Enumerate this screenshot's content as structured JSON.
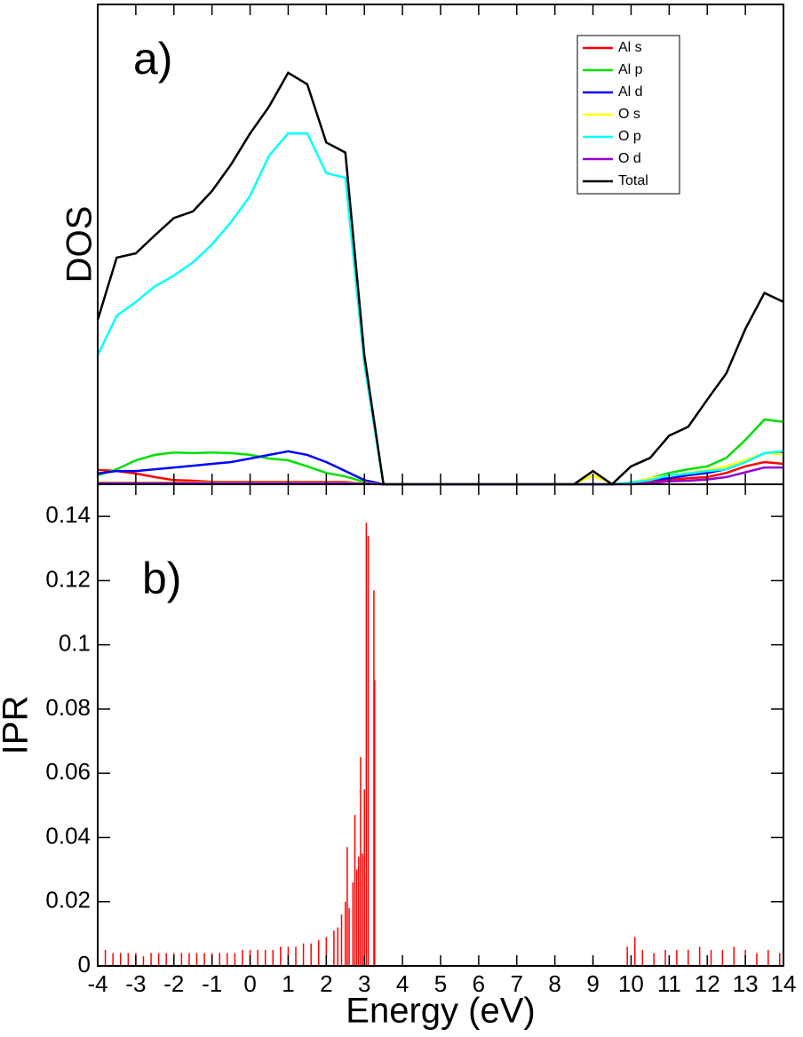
{
  "chart_data": [
    {
      "type": "line",
      "label": "a)",
      "ylabel": "DOS",
      "x": [
        -4,
        -3.5,
        -3,
        -2.5,
        -2,
        -1.5,
        -1,
        -0.5,
        0,
        0.5,
        1,
        1.5,
        2,
        2.5,
        3,
        3.5,
        4,
        4.5,
        5,
        5.5,
        6,
        6.5,
        7,
        7.5,
        8,
        8.5,
        9,
        9.5,
        10,
        10.5,
        11,
        11.5,
        12,
        12.5,
        13,
        13.5,
        14
      ],
      "xlim": [
        -4,
        14
      ],
      "ylim": [
        0,
        8
      ],
      "series": [
        {
          "name": "Al s",
          "color": "#ff0000",
          "values": [
            0.24,
            0.22,
            0.18,
            0.12,
            0.07,
            0.06,
            0.04,
            0.04,
            0.04,
            0.04,
            0.04,
            0.04,
            0.04,
            0.04,
            0.01,
            0,
            0,
            0,
            0,
            0,
            0,
            0,
            0,
            0,
            0,
            0,
            0,
            0,
            0.01,
            0.04,
            0.07,
            0.1,
            0.12,
            0.19,
            0.3,
            0.37,
            0.34
          ]
        },
        {
          "name": "Al p",
          "color": "#00e000",
          "values": [
            0.15,
            0.25,
            0.4,
            0.49,
            0.53,
            0.52,
            0.53,
            0.52,
            0.49,
            0.43,
            0.4,
            0.3,
            0.19,
            0.13,
            0.04,
            0,
            0,
            0,
            0,
            0,
            0,
            0,
            0,
            0,
            0,
            0,
            0,
            0,
            0.03,
            0.1,
            0.19,
            0.25,
            0.3,
            0.44,
            0.74,
            1.08,
            1.04
          ]
        },
        {
          "name": "Al d",
          "color": "#0000ff",
          "values": [
            0.18,
            0.22,
            0.22,
            0.25,
            0.28,
            0.31,
            0.34,
            0.37,
            0.43,
            0.49,
            0.55,
            0.49,
            0.37,
            0.22,
            0.07,
            0,
            0,
            0,
            0,
            0,
            0,
            0,
            0,
            0,
            0,
            0,
            0,
            0,
            0.03,
            0.07,
            0.1,
            0.15,
            0.19,
            0.25,
            0.37,
            0.52,
            0.52
          ]
        },
        {
          "name": "O s",
          "color": "#ffff00",
          "values": [
            0.03,
            0.03,
            0.03,
            0.03,
            0.03,
            0.03,
            0.03,
            0.03,
            0.03,
            0.03,
            0.03,
            0.03,
            0.03,
            0.03,
            0.02,
            0,
            0,
            0,
            0,
            0,
            0,
            0,
            0,
            0,
            0,
            0,
            0.15,
            0,
            0.03,
            0.1,
            0.15,
            0.19,
            0.24,
            0.3,
            0.4,
            0.52,
            0.5
          ]
        },
        {
          "name": "O p",
          "color": "#00ffff",
          "values": [
            2.15,
            2.81,
            3.04,
            3.3,
            3.48,
            3.7,
            4,
            4.37,
            4.81,
            5.48,
            5.85,
            5.85,
            5.19,
            5.11,
            2,
            0,
            0,
            0,
            0,
            0,
            0,
            0,
            0,
            0,
            0,
            0,
            0,
            0,
            0.03,
            0.07,
            0.15,
            0.18,
            0.22,
            0.25,
            0.37,
            0.52,
            0.55
          ]
        },
        {
          "name": "O d",
          "color": "#9400d3",
          "values": [
            0.02,
            0.02,
            0.02,
            0.02,
            0.02,
            0.02,
            0.02,
            0.02,
            0.02,
            0.02,
            0.02,
            0.02,
            0.02,
            0.02,
            0.01,
            0,
            0,
            0,
            0,
            0,
            0,
            0,
            0,
            0,
            0,
            0,
            0,
            0,
            0,
            0.02,
            0.05,
            0.06,
            0.08,
            0.12,
            0.2,
            0.28,
            0.28
          ]
        },
        {
          "name": "Total",
          "color": "#000000",
          "values": [
            2.74,
            3.78,
            3.85,
            4.15,
            4.44,
            4.55,
            4.89,
            5.33,
            5.85,
            6.3,
            6.86,
            6.67,
            5.7,
            5.53,
            2.15,
            0,
            0,
            0,
            0,
            0,
            0,
            0,
            0,
            0,
            0,
            0,
            0.22,
            0,
            0.3,
            0.44,
            0.81,
            0.96,
            1.41,
            1.85,
            2.59,
            3.19,
            3.04
          ]
        }
      ]
    },
    {
      "type": "bar",
      "label": "b)",
      "ylabel": "IPR",
      "xlabel": "Energy (eV)",
      "color": "#ff0000",
      "x": [
        -4,
        -3.8,
        -3.6,
        -3.4,
        -3.2,
        -3,
        -2.8,
        -2.6,
        -2.4,
        -2.2,
        -2,
        -1.8,
        -1.6,
        -1.4,
        -1.2,
        -1,
        -0.8,
        -0.6,
        -0.4,
        -0.2,
        0,
        0.2,
        0.4,
        0.6,
        0.8,
        1,
        1.2,
        1.4,
        1.6,
        1.8,
        2,
        2.2,
        2.3,
        2.4,
        2.5,
        2.55,
        2.6,
        2.7,
        2.75,
        2.8,
        2.85,
        2.9,
        2.95,
        3,
        3.05,
        3.1,
        3.25,
        3.27,
        9,
        9.9,
        10.1,
        10.3,
        10.6,
        10.9,
        11.2,
        11.5,
        11.8,
        12.1,
        12.4,
        12.7,
        13,
        13.3,
        13.6,
        13.9
      ],
      "values": [
        0.008,
        0.005,
        0.004,
        0.004,
        0.004,
        0.004,
        0.003,
        0.004,
        0.004,
        0.004,
        0.004,
        0.004,
        0.004,
        0.004,
        0.004,
        0.004,
        0.004,
        0.004,
        0.004,
        0.005,
        0.005,
        0.005,
        0.005,
        0.005,
        0.006,
        0.006,
        0.006,
        0.007,
        0.007,
        0.008,
        0.009,
        0.011,
        0.012,
        0.016,
        0.02,
        0.037,
        0.018,
        0.026,
        0.047,
        0.03,
        0.034,
        0.065,
        0.035,
        0.055,
        0.138,
        0.134,
        0.117,
        0.089,
        0.002,
        0.006,
        0.009,
        0.005,
        0.004,
        0.005,
        0.005,
        0.005,
        0.006,
        0.005,
        0.005,
        0.006,
        0.005,
        0.004,
        0.005,
        0.004
      ],
      "xlim": [
        -4,
        14
      ],
      "ylim": [
        0,
        0.15
      ],
      "xticks": [
        -4,
        -3,
        -2,
        -1,
        0,
        1,
        2,
        3,
        4,
        5,
        6,
        7,
        8,
        9,
        10,
        11,
        12,
        13,
        14
      ],
      "yticks": [
        0,
        0.02,
        0.04,
        0.06,
        0.08,
        0.1,
        0.12,
        0.14
      ]
    }
  ]
}
